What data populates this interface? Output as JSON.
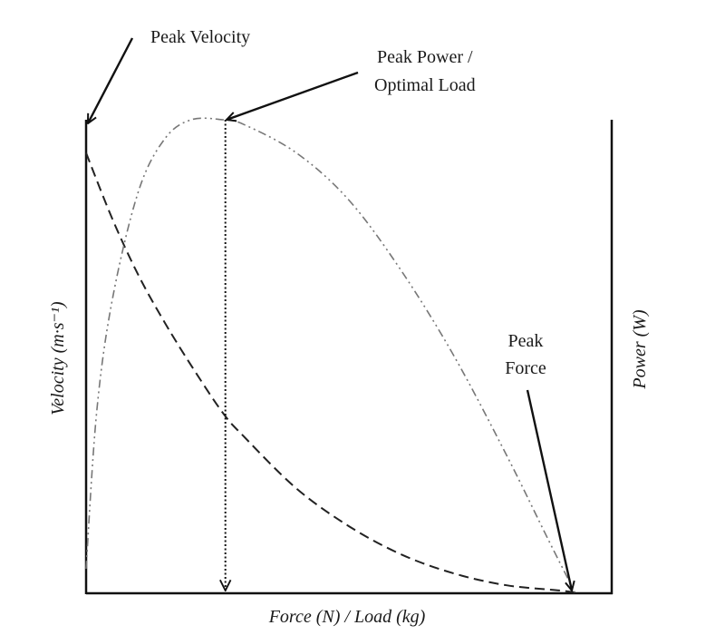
{
  "chart_data": {
    "type": "line",
    "xlabel": "Force (N) / Load (kg)",
    "ylabel_left": "Velocity (m·s⁻¹)",
    "ylabel_right": "Power (W)",
    "xlim": [
      0,
      1
    ],
    "ylim": [
      0,
      1
    ],
    "grid": false,
    "series": [
      {
        "key": "velocity",
        "x": [
          0,
          0.05,
          0.1,
          0.15,
          0.2,
          0.26,
          0.3,
          0.4,
          0.5,
          0.6,
          0.7,
          0.8,
          0.9,
          0.93
        ],
        "values": [
          0.93,
          0.79,
          0.67,
          0.57,
          0.48,
          0.38,
          0.33,
          0.22,
          0.14,
          0.08,
          0.04,
          0.015,
          0.004,
          0
        ],
        "style": "dashed",
        "color": "#222222"
      },
      {
        "key": "power",
        "x": [
          0,
          0.02,
          0.05,
          0.1,
          0.15,
          0.2,
          0.26,
          0.3,
          0.4,
          0.5,
          0.6,
          0.7,
          0.8,
          0.88,
          0.93
        ],
        "values": [
          0.05,
          0.38,
          0.62,
          0.85,
          0.96,
          1.0,
          1.0,
          0.99,
          0.93,
          0.83,
          0.68,
          0.5,
          0.29,
          0.11,
          0
        ],
        "style": "dash-dot-dot",
        "color": "#777777"
      }
    ],
    "optimal_load_x": 0.265,
    "annotations": [
      {
        "key": "peak_velocity",
        "lines": [
          "Peak Velocity"
        ]
      },
      {
        "key": "peak_power",
        "lines": [
          "Peak Power /",
          "Optimal Load"
        ]
      },
      {
        "key": "peak_force",
        "lines": [
          "Peak",
          "Force"
        ]
      }
    ]
  }
}
